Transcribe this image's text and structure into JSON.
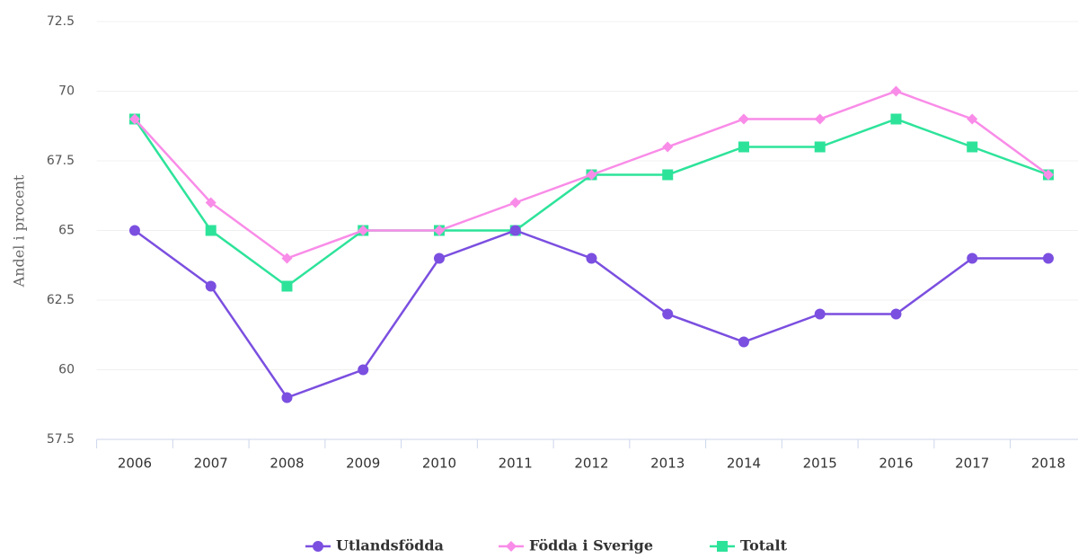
{
  "chart_data": {
    "type": "line",
    "y_label": "Andel i procent",
    "categories": [
      "2006",
      "2007",
      "2008",
      "2009",
      "2010",
      "2011",
      "2012",
      "2013",
      "2014",
      "2015",
      "2016",
      "2017",
      "2018"
    ],
    "series": [
      {
        "name": "Utlandsfödda",
        "color": "#7b4fe0",
        "marker": "circle",
        "values": [
          65,
          63,
          59,
          60,
          64,
          65,
          64,
          62,
          61,
          62,
          62,
          64,
          64
        ]
      },
      {
        "name": "Födda i Sverige",
        "color": "#f98ce8",
        "marker": "diamond",
        "values": [
          69,
          66,
          64,
          65,
          65,
          66,
          67,
          68,
          69,
          69,
          70,
          69,
          67
        ]
      },
      {
        "name": "Totalt",
        "color": "#2de39a",
        "marker": "square",
        "values": [
          69,
          65,
          63,
          65,
          65,
          65,
          67,
          67,
          68,
          68,
          69,
          68,
          67
        ]
      }
    ],
    "ylim": [
      57.5,
      72.5
    ],
    "yticks": [
      57.5,
      60,
      62.5,
      65,
      67.5,
      70,
      72.5
    ],
    "grid": true,
    "legend": "bottom"
  }
}
